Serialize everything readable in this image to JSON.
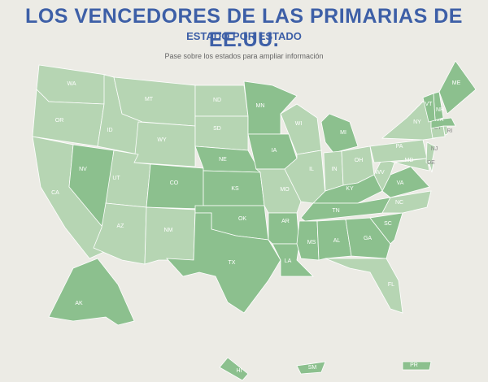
{
  "header": {
    "title": "LOS VENCEDORES DE LAS PRIMARIAS DE EE.UU.",
    "subtitle": "ESTADO POR ESTADO",
    "instruction": "Pase sobre los estados para ampliar información"
  },
  "states": [
    {
      "label": "WA",
      "color": "#b6d5b3"
    },
    {
      "label": "OR",
      "color": "#b6d5b3"
    },
    {
      "label": "CA",
      "color": "#b6d5b3"
    },
    {
      "label": "NV",
      "color": "#8cc08e"
    },
    {
      "label": "ID",
      "color": "#b6d5b3"
    },
    {
      "label": "MT",
      "color": "#b6d5b3"
    },
    {
      "label": "WY",
      "color": "#b6d5b3"
    },
    {
      "label": "UT",
      "color": "#b6d5b3"
    },
    {
      "label": "CO",
      "color": "#8cc08e"
    },
    {
      "label": "AZ",
      "color": "#b6d5b3"
    },
    {
      "label": "NM",
      "color": "#b6d5b3"
    },
    {
      "label": "ND",
      "color": "#b6d5b3"
    },
    {
      "label": "SD",
      "color": "#b6d5b3"
    },
    {
      "label": "NE",
      "color": "#8cc08e"
    },
    {
      "label": "KS",
      "color": "#8cc08e"
    },
    {
      "label": "OK",
      "color": "#8cc08e"
    },
    {
      "label": "TX",
      "color": "#8cc08e"
    },
    {
      "label": "MN",
      "color": "#8cc08e"
    },
    {
      "label": "IA",
      "color": "#8cc08e"
    },
    {
      "label": "MO",
      "color": "#b6d5b3"
    },
    {
      "label": "AR",
      "color": "#8cc08e"
    },
    {
      "label": "LA",
      "color": "#8cc08e"
    },
    {
      "label": "WI",
      "color": "#b6d5b3"
    },
    {
      "label": "IL",
      "color": "#b6d5b3"
    },
    {
      "label": "MI",
      "color": "#8cc08e"
    },
    {
      "label": "IN",
      "color": "#b6d5b3"
    },
    {
      "label": "OH",
      "color": "#b6d5b3"
    },
    {
      "label": "KY",
      "color": "#8cc08e"
    },
    {
      "label": "TN",
      "color": "#8cc08e"
    },
    {
      "label": "MS",
      "color": "#8cc08e"
    },
    {
      "label": "AL",
      "color": "#8cc08e"
    },
    {
      "label": "GA",
      "color": "#8cc08e"
    },
    {
      "label": "FL",
      "color": "#b6d5b3"
    },
    {
      "label": "SC",
      "color": "#8cc08e"
    },
    {
      "label": "NC",
      "color": "#b6d5b3"
    },
    {
      "label": "VA",
      "color": "#8cc08e"
    },
    {
      "label": "WV",
      "color": "#b6d5b3"
    },
    {
      "label": "PA",
      "color": "#b6d5b3"
    },
    {
      "label": "NY",
      "color": "#b6d5b3"
    },
    {
      "label": "MD",
      "color": "#b6d5b3"
    },
    {
      "label": "NJ",
      "color": "#b6d5b3"
    },
    {
      "label": "DE",
      "color": "#b6d5b3"
    },
    {
      "label": "CT",
      "color": "#b6d5b3"
    },
    {
      "label": "RI",
      "color": "#b6d5b3"
    },
    {
      "label": "MA",
      "color": "#8cc08e"
    },
    {
      "label": "NH",
      "color": "#8cc08e"
    },
    {
      "label": "VT",
      "color": "#8cc08e"
    },
    {
      "label": "ME",
      "color": "#8cc08e"
    },
    {
      "label": "AK",
      "color": "#8cc08e"
    },
    {
      "label": "HI",
      "color": "#8cc08e"
    },
    {
      "label": "SM",
      "color": "#8cc08e"
    },
    {
      "label": "PR",
      "color": "#8cc08e"
    }
  ]
}
